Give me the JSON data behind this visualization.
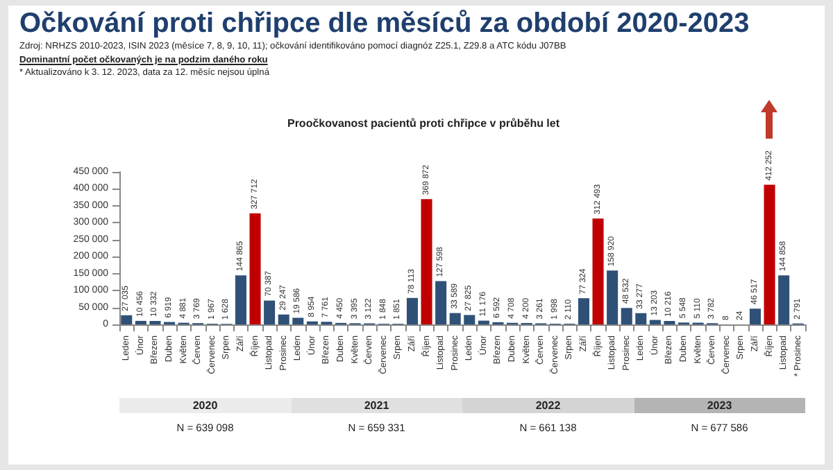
{
  "chart_data": {
    "type": "bar",
    "title": "Očkování proti chřipce dle měsíců za období 2020-2023",
    "subtitle": "Proočkovanost pacientů proti chřipce v průběhu let",
    "annotations": [
      "Zdroj: NRHZS 2010-2023, ISIN 2023 (měsíce 7, 8, 9, 10, 11); očkování identifikováno pomocí diagnóz Z25.1, Z29.8 a ATC kódu J07BB",
      "Dominantní počet očkovaných je na podzim daného roku",
      "* Aktualizováno k 3. 12. 2023, data za 12. měsíc nejsou úplná",
      "2020",
      "N = 639 098",
      "2021",
      "N = 659 331",
      "2022",
      "N = 661 138",
      "2023",
      "N = 677 586"
    ],
    "categories": [
      "Leden",
      "Únor",
      "Březen",
      "Duben",
      "Květen",
      "Červen",
      "Červenec",
      "Srpen",
      "Září",
      "Říjen",
      "Listopad",
      "Prosinec",
      "Leden",
      "Únor",
      "Březen",
      "Duben",
      "Květen",
      "Červen",
      "Červenec",
      "Srpen",
      "Září",
      "Říjen",
      "Listopad",
      "Prosinec",
      "Leden",
      "Únor",
      "Březen",
      "Duben",
      "Květen",
      "Červen",
      "Červenec",
      "Srpen",
      "Září",
      "Říjen",
      "Listopad",
      "Prosinec",
      "Leden",
      "Únor",
      "Březen",
      "Duben",
      "Květen",
      "Červen",
      "Červenec",
      "Srpen",
      "Září",
      "Říjen",
      "Listopad",
      "* Prosinec"
    ],
    "values": [
      27035,
      10456,
      10332,
      6919,
      4881,
      3769,
      1967,
      1628,
      144865,
      327712,
      70387,
      29247,
      19586,
      8954,
      7761,
      4450,
      3395,
      3122,
      1848,
      1851,
      78113,
      369872,
      127598,
      33589,
      27825,
      11176,
      6592,
      4708,
      4200,
      3261,
      1998,
      2110,
      77324,
      312493,
      158920,
      48532,
      33277,
      13203,
      10216,
      5548,
      5110,
      3782,
      8,
      24,
      46517,
      412252,
      144858,
      2791
    ],
    "value_labels": [
      "27 035",
      "10 456",
      "10 332",
      "6 919",
      "4 881",
      "3 769",
      "1 967",
      "1 628",
      "144 865",
      "327 712",
      "70 387",
      "29 247",
      "19 586",
      "8 954",
      "7 761",
      "4 450",
      "3 395",
      "3 122",
      "1 848",
      "1 851",
      "78 113",
      "369 872",
      "127 598",
      "33 589",
      "27 825",
      "11 176",
      "6 592",
      "4 708",
      "4 200",
      "3 261",
      "1 998",
      "2 110",
      "77 324",
      "312 493",
      "158 920",
      "48 532",
      "33 277",
      "13 203",
      "10 216",
      "5 548",
      "5 110",
      "3 782",
      "8",
      "24",
      "46 517",
      "412 252",
      "144 858",
      "2 791"
    ],
    "colors": [
      "#2f5177",
      "#2f5177",
      "#2f5177",
      "#2f5177",
      "#2f5177",
      "#2f5177",
      "#2f5177",
      "#2f5177",
      "#2f5177",
      "#c00000",
      "#2f5177",
      "#2f5177",
      "#2f5177",
      "#2f5177",
      "#2f5177",
      "#2f5177",
      "#2f5177",
      "#2f5177",
      "#2f5177",
      "#2f5177",
      "#2f5177",
      "#c00000",
      "#2f5177",
      "#2f5177",
      "#2f5177",
      "#2f5177",
      "#2f5177",
      "#2f5177",
      "#2f5177",
      "#2f5177",
      "#2f5177",
      "#2f5177",
      "#2f5177",
      "#c00000",
      "#2f5177",
      "#2f5177",
      "#2f5177",
      "#2f5177",
      "#2f5177",
      "#2f5177",
      "#2f5177",
      "#2f5177",
      "#2f5177",
      "#2f5177",
      "#2f5177",
      "#c00000",
      "#2f5177",
      "#2f5177"
    ],
    "ylim": [
      0,
      450000
    ],
    "yticks": [
      {
        "value": 0,
        "label": "0"
      },
      {
        "value": 50000,
        "label": "50 000"
      },
      {
        "value": 100000,
        "label": "100 000"
      },
      {
        "value": 150000,
        "label": "150 000"
      },
      {
        "value": 200000,
        "label": "200 000"
      },
      {
        "value": 250000,
        "label": "250 000"
      },
      {
        "value": 300000,
        "label": "300 000"
      },
      {
        "value": 350000,
        "label": "350 000"
      },
      {
        "value": 400000,
        "label": "400 000"
      },
      {
        "value": 450000,
        "label": "450 000"
      }
    ],
    "grid": false
  }
}
